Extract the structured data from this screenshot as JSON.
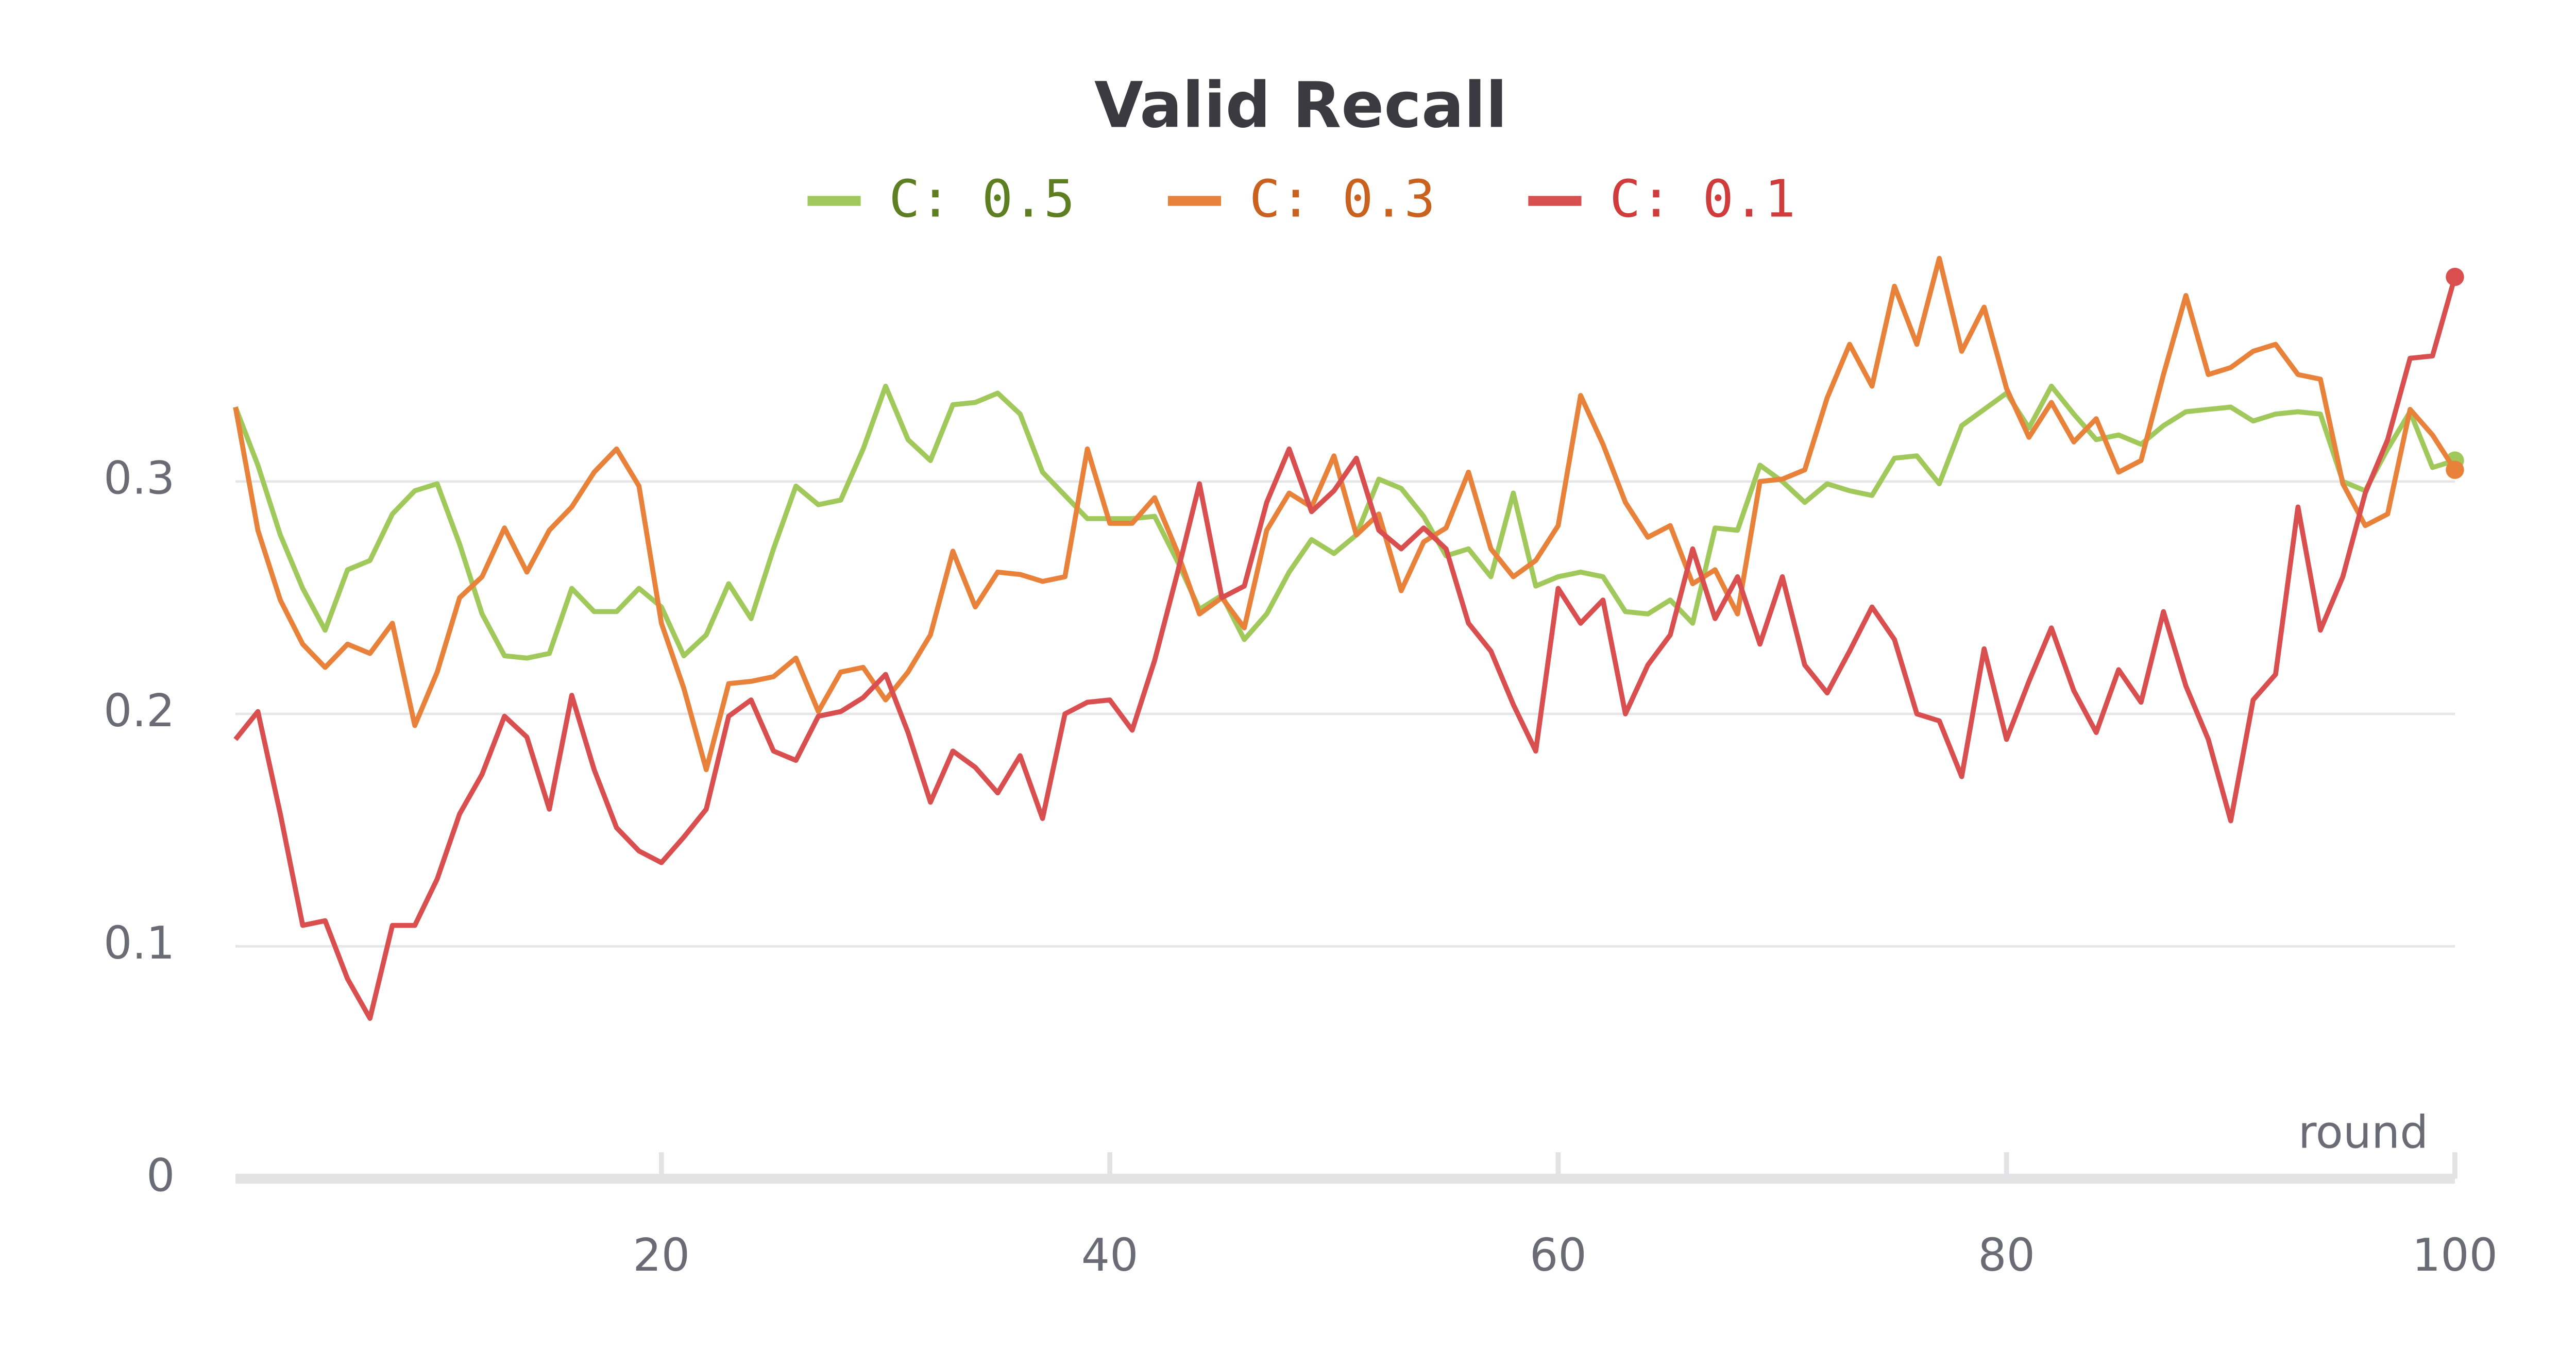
{
  "chart_data": {
    "type": "line",
    "title": "Valid Recall",
    "x_label": "round",
    "x": [
      1,
      2,
      3,
      4,
      5,
      6,
      7,
      8,
      9,
      10,
      11,
      12,
      13,
      14,
      15,
      16,
      17,
      18,
      19,
      20,
      21,
      22,
      23,
      24,
      25,
      26,
      27,
      28,
      29,
      30,
      31,
      32,
      33,
      34,
      35,
      36,
      37,
      38,
      39,
      40,
      41,
      42,
      43,
      44,
      45,
      46,
      47,
      48,
      49,
      50,
      51,
      52,
      53,
      54,
      55,
      56,
      57,
      58,
      59,
      60,
      61,
      62,
      63,
      64,
      65,
      66,
      67,
      68,
      69,
      70,
      71,
      72,
      73,
      74,
      75,
      76,
      77,
      78,
      79,
      80,
      81,
      82,
      83,
      84,
      85,
      86,
      87,
      88,
      89,
      90,
      91,
      92,
      93,
      94,
      95,
      96,
      97,
      98,
      99,
      100
    ],
    "series": [
      {
        "name": "C: 0.5",
        "color": "#a0c85a",
        "values": [
          0.332,
          0.307,
          0.277,
          0.254,
          0.236,
          0.262,
          0.266,
          0.286,
          0.296,
          0.299,
          0.273,
          0.243,
          0.225,
          0.224,
          0.226,
          0.254,
          0.244,
          0.244,
          0.254,
          0.246,
          0.225,
          0.234,
          0.256,
          0.241,
          0.271,
          0.298,
          0.29,
          0.292,
          0.314,
          0.341,
          0.318,
          0.309,
          0.333,
          0.334,
          0.338,
          0.329,
          0.304,
          0.294,
          0.284,
          0.284,
          0.284,
          0.285,
          0.266,
          0.245,
          0.251,
          0.232,
          0.243,
          0.261,
          0.275,
          0.269,
          0.277,
          0.301,
          0.297,
          0.285,
          0.268,
          0.271,
          0.259,
          0.295,
          0.255,
          0.259,
          0.261,
          0.259,
          0.244,
          0.243,
          0.249,
          0.239,
          0.28,
          0.279,
          0.307,
          0.3,
          0.291,
          0.299,
          0.296,
          0.294,
          0.31,
          0.311,
          0.299,
          0.324,
          0.331,
          0.338,
          0.323,
          0.341,
          0.329,
          0.318,
          0.32,
          0.316,
          0.324,
          0.33,
          0.331,
          0.332,
          0.326,
          0.329,
          0.33,
          0.329,
          0.3,
          0.296,
          0.314,
          0.33,
          0.306,
          0.309
        ]
      },
      {
        "name": "C: 0.3",
        "color": "#e8823a",
        "values": [
          0.332,
          0.279,
          0.249,
          0.23,
          0.22,
          0.23,
          0.226,
          0.239,
          0.195,
          0.218,
          0.25,
          0.259,
          0.28,
          0.261,
          0.279,
          0.289,
          0.304,
          0.314,
          0.298,
          0.239,
          0.211,
          0.176,
          0.213,
          0.214,
          0.216,
          0.224,
          0.201,
          0.218,
          0.22,
          0.206,
          0.218,
          0.234,
          0.27,
          0.246,
          0.261,
          0.26,
          0.257,
          0.259,
          0.314,
          0.282,
          0.282,
          0.293,
          0.27,
          0.243,
          0.25,
          0.237,
          0.279,
          0.295,
          0.289,
          0.311,
          0.277,
          0.286,
          0.253,
          0.274,
          0.28,
          0.304,
          0.271,
          0.259,
          0.266,
          0.281,
          0.337,
          0.316,
          0.291,
          0.276,
          0.281,
          0.256,
          0.262,
          0.243,
          0.3,
          0.301,
          0.305,
          0.336,
          0.359,
          0.341,
          0.384,
          0.359,
          0.396,
          0.356,
          0.375,
          0.34,
          0.319,
          0.334,
          0.317,
          0.327,
          0.304,
          0.309,
          0.346,
          0.38,
          0.346,
          0.349,
          0.356,
          0.359,
          0.346,
          0.344,
          0.299,
          0.281,
          0.286,
          0.331,
          0.32,
          0.305
        ]
      },
      {
        "name": "C: 0.1",
        "color": "#d94f4f",
        "values": [
          0.189,
          0.201,
          0.157,
          0.109,
          0.111,
          0.086,
          0.069,
          0.109,
          0.109,
          0.129,
          0.157,
          0.174,
          0.199,
          0.19,
          0.159,
          0.208,
          0.176,
          0.151,
          0.141,
          0.136,
          0.147,
          0.159,
          0.199,
          0.206,
          0.184,
          0.18,
          0.199,
          0.201,
          0.207,
          0.217,
          0.192,
          0.162,
          0.184,
          0.177,
          0.166,
          0.182,
          0.155,
          0.2,
          0.205,
          0.206,
          0.193,
          0.223,
          0.26,
          0.299,
          0.25,
          0.255,
          0.291,
          0.314,
          0.287,
          0.296,
          0.31,
          0.279,
          0.271,
          0.28,
          0.271,
          0.239,
          0.227,
          0.204,
          0.184,
          0.254,
          0.239,
          0.249,
          0.2,
          0.221,
          0.234,
          0.271,
          0.241,
          0.259,
          0.23,
          0.259,
          0.221,
          0.209,
          0.227,
          0.246,
          0.232,
          0.2,
          0.197,
          0.173,
          0.228,
          0.189,
          0.214,
          0.237,
          0.21,
          0.192,
          0.219,
          0.205,
          0.244,
          0.212,
          0.189,
          0.154,
          0.206,
          0.217,
          0.289,
          0.236,
          0.259,
          0.295,
          0.318,
          0.353,
          0.354,
          0.388
        ]
      }
    ],
    "xlim": [
      1,
      100
    ],
    "xticks": [
      20,
      40,
      60,
      80,
      100
    ],
    "ylim": [
      0,
      0.4
    ],
    "yticks": [
      0,
      0.1,
      0.2,
      0.3
    ],
    "grid": true
  }
}
